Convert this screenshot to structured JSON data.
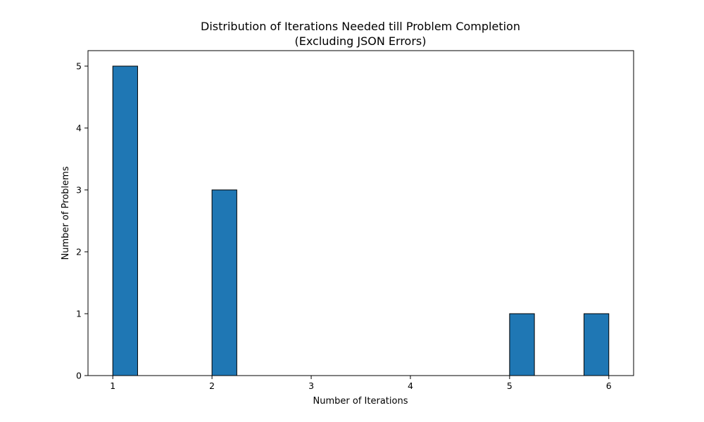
{
  "chart_data": {
    "type": "bar",
    "title_lines": [
      "Distribution of Iterations Needed till Problem Completion",
      "(Excluding JSON Errors)"
    ],
    "xlabel": "Number of Iterations",
    "ylabel": "Number of Problems",
    "xlim": [
      0.75,
      6.25
    ],
    "ylim": [
      0,
      5.25
    ],
    "xticks": [
      1,
      2,
      3,
      4,
      5,
      6
    ],
    "yticks": [
      0,
      1,
      2,
      3,
      4,
      5
    ],
    "bin_width": 0.25,
    "bars": [
      {
        "x_start": 1.0,
        "x_end": 1.25,
        "count": 5
      },
      {
        "x_start": 2.0,
        "x_end": 2.25,
        "count": 3
      },
      {
        "x_start": 5.0,
        "x_end": 5.25,
        "count": 1
      },
      {
        "x_start": 5.75,
        "x_end": 6.0,
        "count": 1
      }
    ],
    "bar_color": "#1f77b4",
    "edge_color": "#000000",
    "grid": false
  }
}
